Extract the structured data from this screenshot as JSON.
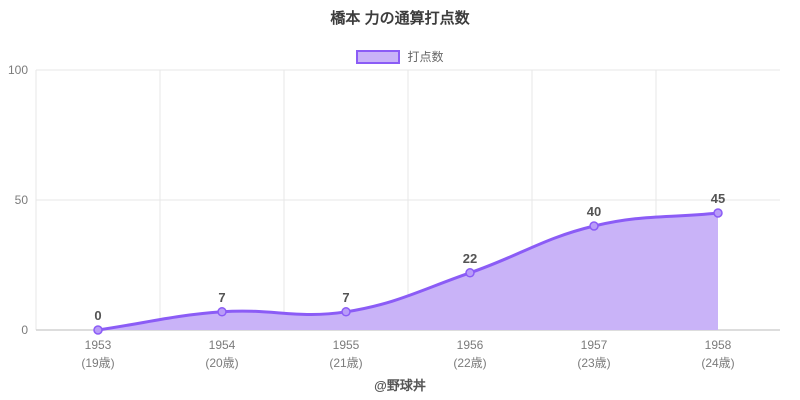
{
  "page": {
    "title": "橋本 力の通算打点数",
    "footer": "@野球丼"
  },
  "legend": {
    "items": [
      {
        "label": "打点数",
        "swatch_fill": "#c9b3f8",
        "swatch_border": "#8b5cf6"
      }
    ]
  },
  "colors": {
    "line": "#8b5cf6",
    "area": "#c9b3f8",
    "point_fill": "#b99cf8",
    "grid": "#e7e7e7",
    "axis_line": "#d2d2d2",
    "tick_text": "#7b7b7b",
    "data_label_text": "#545454",
    "title_text": "#3c3c3c",
    "legend_text": "#666666",
    "footer_text": "#555555"
  },
  "chart_data": {
    "type": "area",
    "title": "橋本 力の通算打点数",
    "categories": [
      "1953",
      "1954",
      "1955",
      "1956",
      "1957",
      "1958"
    ],
    "category_sublabels": [
      "(19歳)",
      "(20歳)",
      "(21歳)",
      "(22歳)",
      "(23歳)",
      "(24歳)"
    ],
    "series": [
      {
        "name": "打点数",
        "values": [
          0,
          7,
          7,
          22,
          40,
          45
        ]
      }
    ],
    "ylim": [
      0,
      100
    ],
    "yticks": [
      0,
      50,
      100
    ],
    "grid": true,
    "legend_position": "top",
    "line_smoothing": 0.4,
    "data_labels_shown": true
  }
}
